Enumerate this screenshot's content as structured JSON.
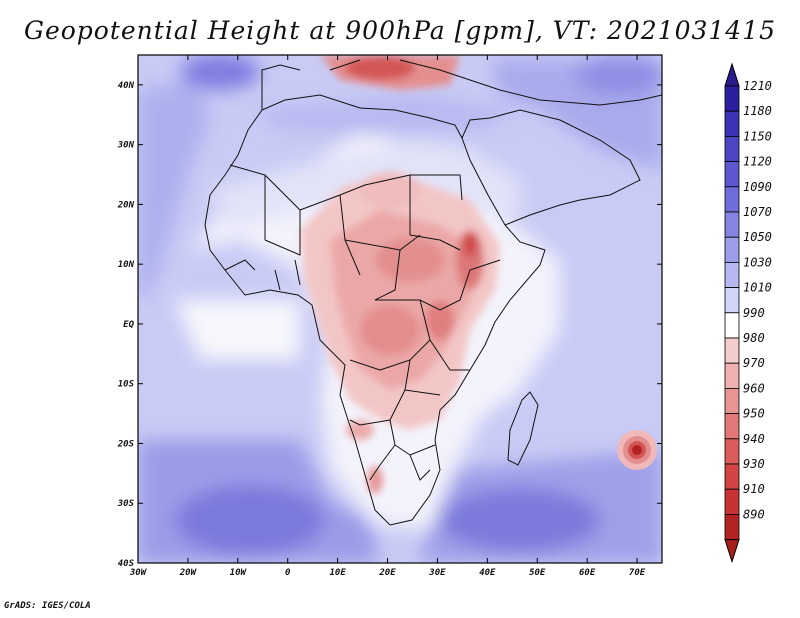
{
  "title": "Geopotential Height at 900hPa [gpm], VT: 2021031415",
  "credit": "GrADS: IGES/COLA",
  "map": {
    "lon_range": [
      -30,
      75
    ],
    "lat_range": [
      -40,
      45
    ],
    "lat_ticks": [
      {
        "lat": 40,
        "label": "40N"
      },
      {
        "lat": 30,
        "label": "30N"
      },
      {
        "lat": 20,
        "label": "20N"
      },
      {
        "lat": 10,
        "label": "10N"
      },
      {
        "lat": 0,
        "label": "EQ"
      },
      {
        "lat": -10,
        "label": "10S"
      },
      {
        "lat": -20,
        "label": "20S"
      },
      {
        "lat": -30,
        "label": "30S"
      },
      {
        "lat": -40,
        "label": "40S"
      }
    ],
    "lon_ticks": [
      {
        "lon": -30,
        "label": "30W"
      },
      {
        "lon": -20,
        "label": "20W"
      },
      {
        "lon": -10,
        "label": "10W"
      },
      {
        "lon": 0,
        "label": "0"
      },
      {
        "lon": 10,
        "label": "10E"
      },
      {
        "lon": 20,
        "label": "20E"
      },
      {
        "lon": 30,
        "label": "30E"
      },
      {
        "lon": 40,
        "label": "40E"
      },
      {
        "lon": 50,
        "label": "50E"
      },
      {
        "lon": 60,
        "label": "60E"
      },
      {
        "lon": 70,
        "label": "70E"
      }
    ]
  },
  "colorbar": {
    "levels": [
      {
        "label": "1210",
        "color": "#2b1fa0"
      },
      {
        "label": "1180",
        "color": "#3c32b4"
      },
      {
        "label": "1150",
        "color": "#4c45c4"
      },
      {
        "label": "1120",
        "color": "#5d58d2"
      },
      {
        "label": "1090",
        "color": "#6f6cdc"
      },
      {
        "label": "1070",
        "color": "#8584e3"
      },
      {
        "label": "1050",
        "color": "#9c9deb"
      },
      {
        "label": "1030",
        "color": "#b7b8f1"
      },
      {
        "label": "1010",
        "color": "#d2d4f7"
      },
      {
        "label": "990",
        "color": "#ffffff"
      },
      {
        "label": "980",
        "color": "#f4cccc"
      },
      {
        "label": "970",
        "color": "#eeb0b0"
      },
      {
        "label": "960",
        "color": "#e89494"
      },
      {
        "label": "950",
        "color": "#e27878"
      },
      {
        "label": "940",
        "color": "#dc5c5c"
      },
      {
        "label": "930",
        "color": "#d44444"
      },
      {
        "label": "910",
        "color": "#c83232"
      },
      {
        "label": "890",
        "color": "#b42222"
      }
    ],
    "top_color": "#2a1c8f",
    "bottom_color": "#a81c1c"
  }
}
